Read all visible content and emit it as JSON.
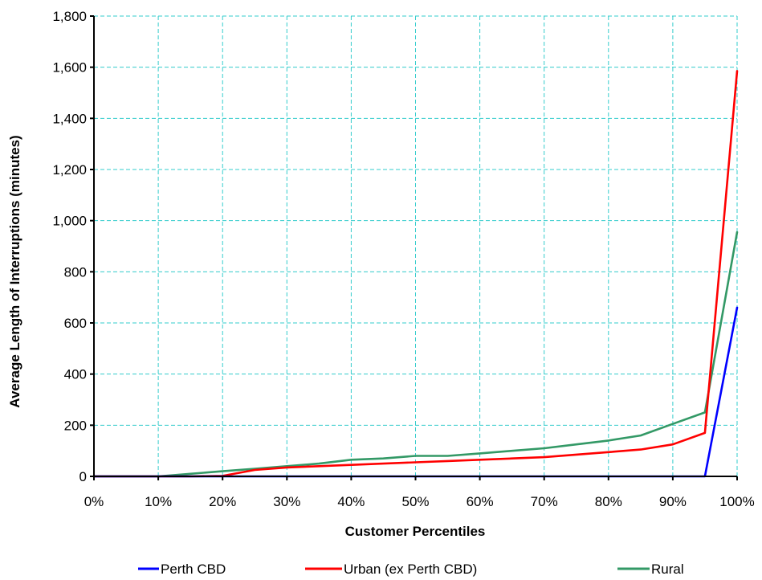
{
  "chart_data": {
    "type": "line",
    "title": "",
    "xlabel": "Customer Percentiles",
    "ylabel": "Average Length of Interruptions (minutes)",
    "x": [
      0,
      5,
      10,
      15,
      20,
      25,
      30,
      35,
      40,
      45,
      50,
      55,
      60,
      65,
      70,
      75,
      80,
      85,
      90,
      95,
      100
    ],
    "xlim": [
      0,
      100
    ],
    "ylim": [
      0,
      1800
    ],
    "x_ticks": [
      "0%",
      "10%",
      "20%",
      "30%",
      "40%",
      "50%",
      "60%",
      "70%",
      "80%",
      "90%",
      "100%"
    ],
    "y_ticks": [
      "0",
      "200",
      "400",
      "600",
      "800",
      "1,000",
      "1,200",
      "1,400",
      "1,600",
      "1,800"
    ],
    "grid": true,
    "legend_position": "bottom",
    "series": [
      {
        "name": "Perth CBD",
        "color": "#0000ff",
        "values": [
          0,
          0,
          0,
          0,
          0,
          0,
          0,
          0,
          0,
          0,
          0,
          0,
          0,
          0,
          0,
          0,
          0,
          0,
          0,
          0,
          660
        ]
      },
      {
        "name": "Urban (ex Perth CBD)",
        "color": "#ff0000",
        "values": [
          0,
          0,
          0,
          0,
          2,
          25,
          35,
          40,
          45,
          50,
          55,
          60,
          65,
          70,
          75,
          85,
          95,
          105,
          125,
          170,
          1585
        ]
      },
      {
        "name": "Rural",
        "color": "#339966",
        "values": [
          0,
          0,
          0,
          10,
          20,
          30,
          40,
          50,
          65,
          70,
          80,
          80,
          90,
          100,
          110,
          125,
          140,
          160,
          205,
          250,
          955
        ]
      }
    ]
  }
}
